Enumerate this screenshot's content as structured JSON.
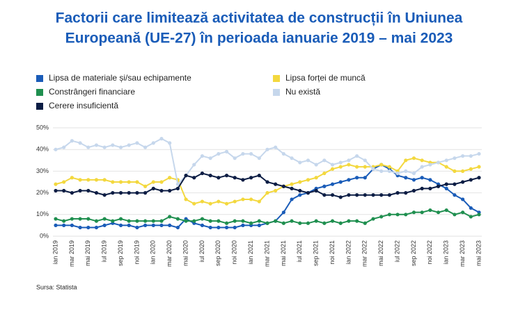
{
  "chart_data": {
    "type": "line",
    "title": [
      "Factorii care limitează activitatea de construcții în Uniunea",
      "Europeană (UE-27) în perioada ianuarie 2019 – mai 2023"
    ],
    "source": "Sursa: Statista",
    "categories": [
      "ian 2019",
      null,
      "mar 2019",
      null,
      "mai 2019",
      null,
      "iul 2019",
      null,
      "sep 2019",
      null,
      "noi 2019",
      null,
      "ian 2020",
      null,
      "mar 2020",
      null,
      "mai 2020",
      null,
      "iul 2020",
      null,
      "sep 2020",
      null,
      "noi 2020",
      null,
      "ian 2021",
      null,
      "mar 2021",
      null,
      "mai 2021",
      null,
      "iul 2021",
      null,
      "sep 2021",
      null,
      "noi 2021",
      null,
      "ian 2022",
      null,
      "mar 2022",
      null,
      "mai 2022",
      null,
      "iul 2022",
      null,
      "sep 2022",
      null,
      "noi 2022",
      null,
      "ian 2023",
      null,
      "mar 2023",
      null,
      "mai 2023"
    ],
    "series": [
      {
        "name": "Lipsa de materiale și/sau echipamente",
        "color": "#1a5cb8",
        "values": [
          5,
          5,
          5,
          4,
          4,
          4,
          5,
          6,
          5,
          5,
          4,
          5,
          5,
          5,
          5,
          4,
          8,
          6,
          5,
          4,
          4,
          4,
          4,
          5,
          5,
          5,
          6,
          7,
          11,
          17,
          19,
          20,
          22,
          23,
          24,
          25,
          26,
          27,
          27,
          31,
          33,
          31,
          28,
          27,
          26,
          27,
          26,
          24,
          22,
          19,
          17,
          13,
          11
        ]
      },
      {
        "name": "Lipsa forței de muncă",
        "color": "#f3d83e",
        "values": [
          24,
          25,
          27,
          26,
          26,
          26,
          26,
          25,
          25,
          25,
          25,
          23,
          25,
          25,
          27,
          26,
          17,
          15,
          16,
          15,
          16,
          15,
          16,
          17,
          17,
          16,
          20,
          21,
          23,
          24,
          25,
          26,
          27,
          29,
          31,
          32,
          33,
          32,
          32,
          32,
          33,
          32,
          30,
          35,
          36,
          35,
          34,
          34,
          32,
          30,
          30,
          31,
          32
        ]
      },
      {
        "name": "Constrângeri financiare",
        "color": "#1f8f4f",
        "values": [
          8,
          7,
          8,
          8,
          8,
          7,
          8,
          7,
          8,
          7,
          7,
          7,
          7,
          7,
          9,
          8,
          7,
          7,
          8,
          7,
          7,
          6,
          7,
          7,
          6,
          7,
          6,
          7,
          6,
          7,
          6,
          6,
          7,
          6,
          7,
          6,
          7,
          7,
          6,
          8,
          9,
          10,
          10,
          10,
          11,
          11,
          12,
          11,
          12,
          10,
          11,
          9,
          10
        ]
      },
      {
        "name": "Nu există",
        "color": "#c6d7ec",
        "values": [
          40,
          41,
          44,
          43,
          41,
          42,
          41,
          42,
          41,
          42,
          43,
          41,
          43,
          45,
          43,
          24,
          28,
          33,
          37,
          36,
          38,
          39,
          36,
          38,
          38,
          36,
          40,
          41,
          38,
          36,
          34,
          35,
          33,
          35,
          33,
          34,
          35,
          37,
          35,
          31,
          30,
          30,
          29,
          30,
          29,
          32,
          33,
          34,
          35,
          36,
          37,
          37,
          38
        ]
      },
      {
        "name": "Cerere insuficientă",
        "color": "#0c1d44",
        "values": [
          21,
          21,
          20,
          21,
          21,
          20,
          19,
          20,
          20,
          20,
          20,
          20,
          22,
          21,
          21,
          22,
          28,
          27,
          29,
          28,
          27,
          28,
          27,
          26,
          27,
          28,
          25,
          24,
          23,
          22,
          21,
          20,
          21,
          19,
          19,
          18,
          19,
          19,
          19,
          19,
          19,
          19,
          20,
          20,
          21,
          22,
          22,
          23,
          24,
          24,
          25,
          26,
          27
        ]
      }
    ],
    "ylim": [
      0,
      50
    ],
    "yticks": [
      {
        "value": 0,
        "label": "0%"
      },
      {
        "value": 10,
        "label": "10%"
      },
      {
        "value": 20,
        "label": "20%"
      },
      {
        "value": 30,
        "label": "30%"
      },
      {
        "value": 40,
        "label": "40%"
      },
      {
        "value": 50,
        "label": "50%"
      }
    ],
    "grid": true
  }
}
